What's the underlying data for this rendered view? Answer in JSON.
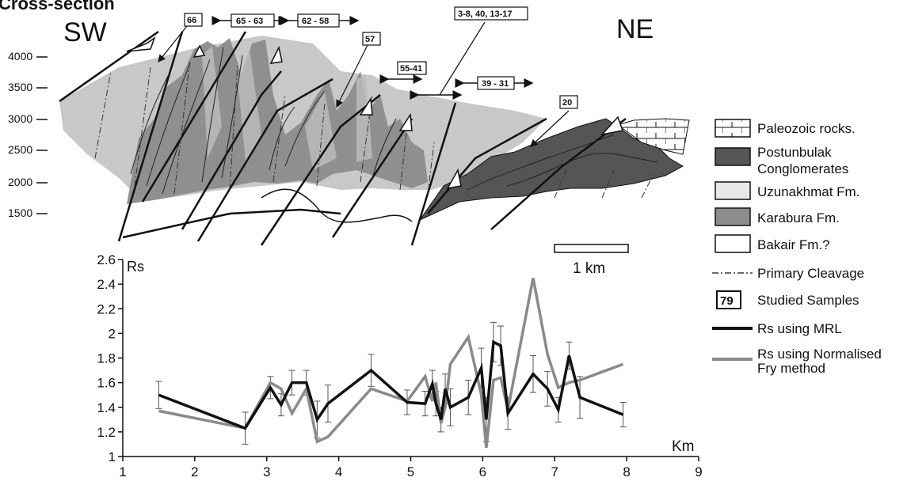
{
  "figure": {
    "title": "Cross-section",
    "left_label": "SW",
    "right_label": "NE",
    "scale_label": "1 km"
  },
  "elevation_ticks": [
    "4000",
    "3500",
    "3000",
    "2500",
    "2000",
    "1500"
  ],
  "sample_labels": [
    "66",
    "65 - 63",
    "62 - 58",
    "57",
    "3-8, 40, 13-17",
    "55-41",
    "39 - 31",
    "20"
  ],
  "legend": {
    "paleozoic": "Paleozoic rocks.",
    "postunbulak_1": "Postunbulak",
    "postunbulak_2": "Conglomerates",
    "uzunakhmat": "Uzunakhmat Fm.",
    "karabura": "Karabura Fm.",
    "bakair": "Bakair Fm.?",
    "cleavage": "Primary Cleavage",
    "sample_box": "79",
    "samples": "Studied Samples",
    "mrl": "Rs using MRL",
    "fry_1": "Rs using Normalised",
    "fry_2": "Fry method"
  },
  "colors": {
    "uzunakhmat": "#c8c8c8",
    "karabura": "#8c8c8c",
    "postunbulak": "#555555",
    "mrl_line": "#111111",
    "fry_line": "#8a8a8a"
  },
  "chart_data": {
    "type": "line",
    "xlabel": "Km",
    "ylabel": "Rs",
    "xlim": [
      1,
      9
    ],
    "ylim": [
      1,
      2.6
    ],
    "x_ticks": [
      "1",
      "2",
      "3",
      "4",
      "5",
      "6",
      "7",
      "8",
      "9"
    ],
    "y_ticks": [
      "1",
      "1.2",
      "1.4",
      "1.6",
      "1.8",
      "2",
      "2.2",
      "2.4",
      "2.6"
    ],
    "grid": false,
    "series": [
      {
        "name": "Rs using MRL",
        "x": [
          1.5,
          2.7,
          3.05,
          3.2,
          3.35,
          3.55,
          3.7,
          3.85,
          4.45,
          4.95,
          5.2,
          5.3,
          5.35,
          5.42,
          5.48,
          5.55,
          5.8,
          5.98,
          6.05,
          6.15,
          6.25,
          6.35,
          6.7,
          6.9,
          7.05,
          7.2,
          7.35,
          7.95
        ],
        "y": [
          1.5,
          1.23,
          1.56,
          1.42,
          1.6,
          1.6,
          1.3,
          1.43,
          1.7,
          1.44,
          1.43,
          1.59,
          1.43,
          1.3,
          1.55,
          1.4,
          1.48,
          1.72,
          1.3,
          1.93,
          1.9,
          1.35,
          1.67,
          1.55,
          1.38,
          1.82,
          1.48,
          1.34
        ],
        "error": [
          0.11,
          0.13,
          0.09,
          0.09,
          0.1,
          0.1,
          0.15,
          0.15,
          0.13,
          0.1,
          0.1,
          0.11,
          0.1,
          0.1,
          0.12,
          0.15,
          0.14,
          0.16,
          0.18,
          0.16,
          0.16,
          0.13,
          0.15,
          0.14,
          0.1,
          0.11,
          0.17,
          0.1
        ]
      },
      {
        "name": "Rs using Normalised Fry method",
        "x": [
          1.5,
          2.7,
          3.05,
          3.2,
          3.35,
          3.55,
          3.7,
          3.85,
          4.45,
          4.95,
          5.2,
          5.3,
          5.35,
          5.42,
          5.48,
          5.55,
          5.8,
          5.98,
          6.05,
          6.15,
          6.25,
          6.35,
          6.7,
          6.9,
          7.05,
          7.2,
          7.35,
          7.95
        ],
        "y": [
          1.37,
          1.23,
          1.6,
          1.55,
          1.35,
          1.55,
          1.12,
          1.16,
          1.55,
          1.45,
          1.65,
          1.45,
          1.6,
          1.27,
          1.4,
          1.75,
          1.97,
          1.5,
          1.07,
          1.62,
          1.64,
          1.38,
          2.45,
          1.83,
          1.56,
          1.6,
          1.62,
          1.75
        ]
      }
    ]
  }
}
